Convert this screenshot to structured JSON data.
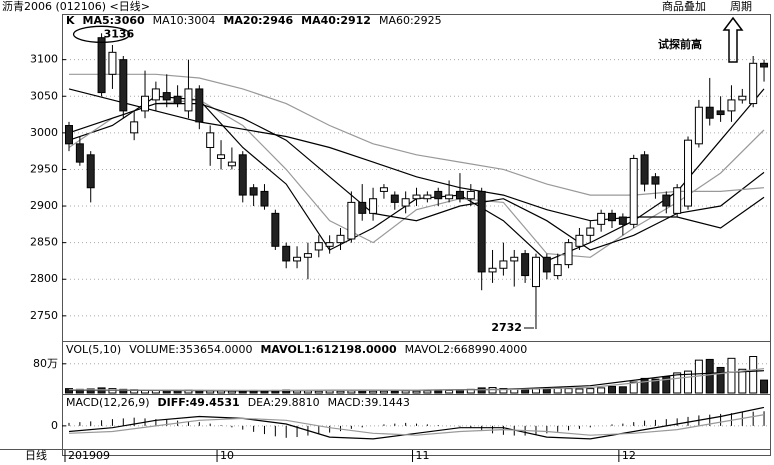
{
  "header": {
    "title": "沥青2006 (012106) <日线>",
    "buttons": [
      "商品叠加",
      "周期"
    ],
    "period": "日线"
  },
  "chart_data": [
    {
      "type": "candlestick",
      "label": "K",
      "up_color": "#ffffff",
      "down_color": "#222222",
      "grid": true,
      "open": [
        3010,
        2985,
        2970,
        3130,
        3080,
        3100,
        3000,
        3030,
        3045,
        3055,
        3050,
        3030,
        3060,
        2980,
        2965,
        2955,
        2970,
        2925,
        2920,
        2890,
        2845,
        2825,
        2830,
        2840,
        2845,
        2850,
        2855,
        2905,
        2890,
        2920,
        2915,
        2900,
        2910,
        2910,
        2920,
        2910,
        2920,
        2910,
        2920,
        2810,
        2815,
        2825,
        2835,
        2790,
        2830,
        2805,
        2820,
        2845,
        2860,
        2875,
        2890,
        2885,
        2875,
        2970,
        2940,
        2915,
        2890,
        2900,
        2985,
        3035,
        3030,
        3030,
        3045,
        3040,
        3095
      ],
      "high": [
        3015,
        2995,
        2975,
        3136,
        3120,
        3105,
        3030,
        3085,
        3070,
        3080,
        3065,
        3100,
        3065,
        3010,
        2990,
        2980,
        2975,
        2930,
        2930,
        2895,
        2850,
        2845,
        2850,
        2860,
        2860,
        2870,
        2920,
        2930,
        2925,
        2930,
        2920,
        2920,
        2925,
        2920,
        2925,
        2935,
        2945,
        2930,
        2925,
        2840,
        2850,
        2840,
        2840,
        2835,
        2835,
        2835,
        2855,
        2870,
        2880,
        2895,
        2895,
        2890,
        2970,
        2975,
        2945,
        2920,
        2930,
        2995,
        3045,
        3075,
        3050,
        3065,
        3060,
        3105,
        3100
      ],
      "low": [
        2975,
        2955,
        2905,
        3050,
        3060,
        3020,
        2990,
        3020,
        3030,
        3035,
        3035,
        3020,
        3005,
        2955,
        2950,
        2950,
        2905,
        2900,
        2895,
        2840,
        2815,
        2815,
        2800,
        2830,
        2835,
        2840,
        2850,
        2880,
        2880,
        2910,
        2895,
        2890,
        2900,
        2905,
        2900,
        2905,
        2905,
        2900,
        2785,
        2795,
        2805,
        2790,
        2795,
        2732,
        2800,
        2800,
        2815,
        2840,
        2850,
        2865,
        2870,
        2860,
        2870,
        2920,
        2910,
        2890,
        2885,
        2895,
        2980,
        3010,
        3015,
        3015,
        3040,
        3035,
        3070
      ],
      "close": [
        2985,
        2960,
        2925,
        3055,
        3110,
        3030,
        3015,
        3050,
        3060,
        3045,
        3040,
        3060,
        3015,
        3000,
        2970,
        2960,
        2915,
        2915,
        2900,
        2845,
        2825,
        2830,
        2835,
        2850,
        2850,
        2860,
        2905,
        2890,
        2910,
        2925,
        2905,
        2910,
        2915,
        2915,
        2910,
        2915,
        2910,
        2920,
        2810,
        2815,
        2825,
        2830,
        2805,
        2830,
        2810,
        2820,
        2850,
        2860,
        2870,
        2890,
        2880,
        2875,
        2965,
        2930,
        2930,
        2900,
        2925,
        2990,
        3035,
        3020,
        3025,
        3045,
        3050,
        3095,
        3090
      ],
      "ylim": [
        2717,
        3161
      ],
      "yticks": [
        2750,
        2800,
        2850,
        2900,
        2950,
        3000,
        3050,
        3100
      ],
      "series": [
        {
          "name": "MA5:3060",
          "color": "#000000",
          "x": [
            0,
            4,
            8,
            12,
            16,
            20,
            24,
            28,
            32,
            36,
            40,
            44,
            48,
            52,
            56,
            60,
            64
          ],
          "values": [
            2990,
            3010,
            3050,
            3045,
            2980,
            2930,
            2840,
            2870,
            2910,
            2915,
            2880,
            2825,
            2850,
            2880,
            2920,
            2990,
            3060
          ]
        },
        {
          "name": "MA10:3004",
          "color": "#999999",
          "x": [
            0,
            4,
            8,
            12,
            16,
            20,
            24,
            28,
            32,
            36,
            40,
            44,
            48,
            52,
            56,
            60,
            64
          ],
          "values": [
            2980,
            3020,
            3040,
            3045,
            3010,
            2950,
            2880,
            2850,
            2895,
            2910,
            2905,
            2835,
            2830,
            2870,
            2905,
            2945,
            3004
          ]
        },
        {
          "name": "MA20:2946",
          "color": "#000000",
          "x": [
            0,
            4,
            8,
            12,
            16,
            20,
            24,
            28,
            32,
            36,
            40,
            44,
            48,
            52,
            56,
            60,
            64
          ],
          "values": [
            3000,
            3020,
            3040,
            3040,
            3020,
            2990,
            2940,
            2890,
            2880,
            2900,
            2910,
            2880,
            2840,
            2860,
            2890,
            2900,
            2946
          ]
        },
        {
          "name": "MA40:2912",
          "color": "#000000",
          "x": [
            0,
            4,
            8,
            12,
            16,
            20,
            24,
            28,
            32,
            36,
            40,
            44,
            48,
            52,
            56,
            60,
            64
          ],
          "values": [
            3060,
            3045,
            3030,
            3015,
            3005,
            2995,
            2980,
            2960,
            2940,
            2925,
            2915,
            2895,
            2880,
            2885,
            2885,
            2870,
            2912
          ]
        },
        {
          "name": "MA60:2925",
          "color": "#999999",
          "x": [
            0,
            4,
            8,
            12,
            16,
            20,
            24,
            28,
            32,
            36,
            40,
            44,
            48,
            52,
            56,
            60,
            64
          ],
          "values": [
            3080,
            3080,
            3080,
            3075,
            3060,
            3040,
            3010,
            2985,
            2970,
            2960,
            2950,
            2930,
            2915,
            2915,
            2920,
            2920,
            2925
          ]
        }
      ],
      "high_label": "3136",
      "low_label": "2732",
      "note": "试探前高"
    },
    {
      "type": "bar",
      "label": "VOL(5,10)",
      "volume_label": "VOLUME:353654.0000",
      "grid": true,
      "values": [
        12,
        10,
        11,
        14,
        12,
        10,
        9,
        8,
        8,
        7,
        7,
        8,
        7,
        6,
        6,
        5,
        6,
        7,
        6,
        7,
        8,
        6,
        6,
        5,
        6,
        5,
        6,
        6,
        5,
        5,
        5,
        6,
        5,
        6,
        6,
        7,
        8,
        10,
        14,
        15,
        12,
        11,
        10,
        11,
        12,
        13,
        12,
        11,
        12,
        14,
        18,
        17,
        30,
        40,
        38,
        45,
        55,
        60,
        90,
        92,
        70,
        95,
        65,
        100,
        35.3654
      ],
      "ylim": [
        0,
        137
      ],
      "yticks": [
        {
          "value": 80,
          "label": "80万"
        }
      ],
      "series": [
        {
          "name": "MAVOL1:612198.0000",
          "color": "#000000",
          "x": [
            0,
            8,
            16,
            24,
            32,
            40,
            48,
            56,
            64
          ],
          "values": [
            8,
            7,
            6,
            7,
            8,
            10,
            20,
            50,
            61.2198
          ]
        },
        {
          "name": "MAVOL2:668990.4000",
          "color": "#999999",
          "x": [
            0,
            8,
            16,
            24,
            32,
            40,
            48,
            56,
            64
          ],
          "values": [
            9,
            8,
            7,
            7,
            8,
            9,
            15,
            40,
            66.899
          ]
        }
      ]
    },
    {
      "type": "macd",
      "label": "MACD(12,26,9)",
      "grid": true,
      "bars": {
        "name": "MACD:39.1443",
        "values": [
          8,
          10,
          12,
          15,
          18,
          20,
          22,
          20,
          18,
          16,
          14,
          12,
          10,
          6,
          2,
          -4,
          -10,
          -16,
          -22,
          -28,
          -32,
          -30,
          -26,
          -22,
          -18,
          -14,
          -8,
          -4,
          0,
          4,
          6,
          8,
          6,
          4,
          2,
          0,
          -2,
          -4,
          -12,
          -20,
          -24,
          -26,
          -26,
          -24,
          -20,
          -16,
          -12,
          -8,
          -4,
          0,
          4,
          6,
          10,
          14,
          16,
          18,
          20,
          24,
          28,
          30,
          32,
          34,
          36,
          38,
          39.1443
        ]
      },
      "ylim": [
        -62,
        80
      ],
      "yticks": [
        0
      ],
      "series": [
        {
          "name": "DIFF:49.4531",
          "color": "#000000",
          "x": [
            0,
            4,
            8,
            12,
            16,
            20,
            24,
            28,
            32,
            36,
            40,
            44,
            48,
            52,
            56,
            60,
            64
          ],
          "values": [
            -15,
            -5,
            15,
            25,
            20,
            5,
            -30,
            -35,
            -20,
            -5,
            -5,
            -30,
            -35,
            -15,
            5,
            25,
            49.4531
          ]
        },
        {
          "name": "DEA:29.8810",
          "color": "#999999",
          "x": [
            0,
            4,
            8,
            12,
            16,
            20,
            24,
            28,
            32,
            36,
            40,
            44,
            48,
            52,
            56,
            60,
            64
          ],
          "values": [
            -20,
            -15,
            0,
            15,
            20,
            15,
            -5,
            -20,
            -25,
            -15,
            -10,
            -15,
            -25,
            -20,
            -10,
            10,
            29.881
          ]
        }
      ],
      "categories": [
        "201909",
        null,
        null,
        null,
        null,
        null,
        null,
        null,
        null,
        null,
        null,
        null,
        null,
        null,
        "10",
        null,
        null,
        null,
        null,
        null,
        null,
        null,
        null,
        null,
        null,
        null,
        null,
        null,
        null,
        null,
        null,
        null,
        "11",
        null,
        null,
        null,
        null,
        null,
        null,
        null,
        null,
        null,
        null,
        null,
        null,
        null,
        null,
        null,
        null,
        null,
        null,
        "12",
        null,
        null,
        null,
        null,
        null,
        null,
        null,
        null,
        null,
        null,
        null,
        null,
        null
      ]
    }
  ]
}
